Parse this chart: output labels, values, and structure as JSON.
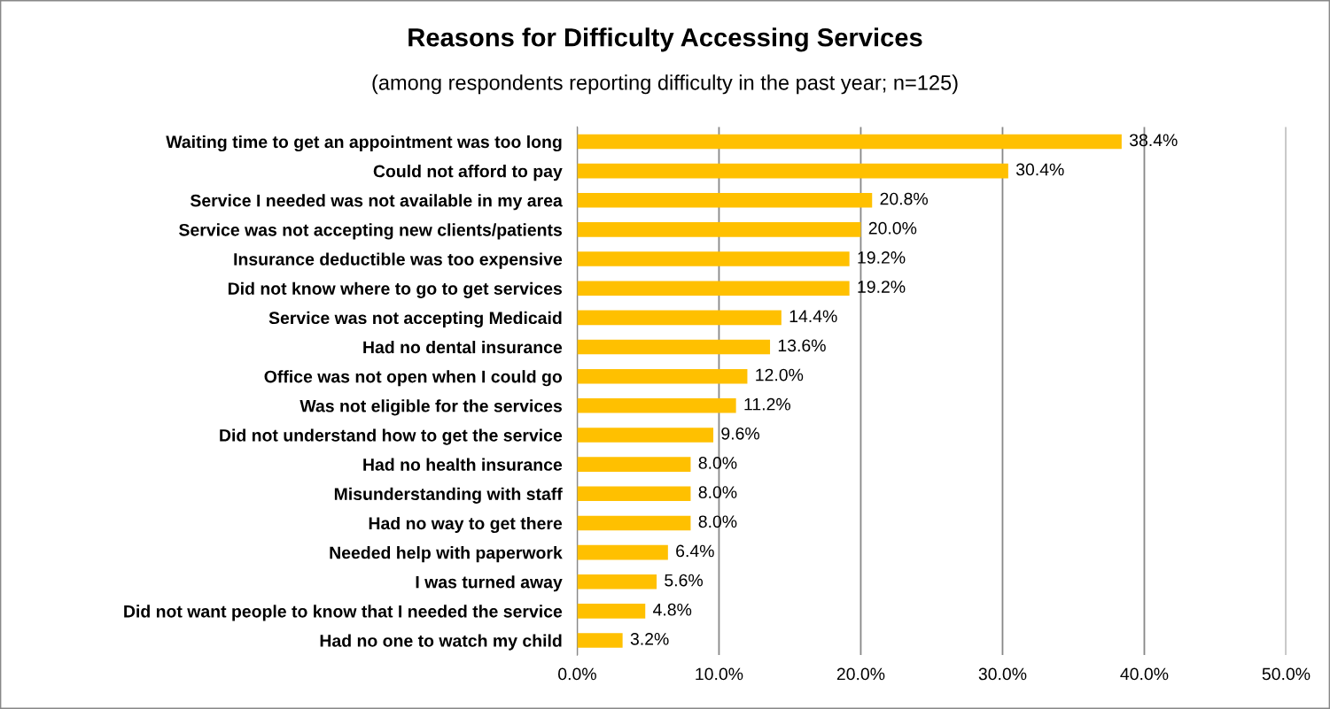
{
  "chart_data": {
    "type": "bar",
    "orientation": "horizontal",
    "title": "Reasons for Difficulty Accessing Services",
    "subtitle": "(among respondents reporting difficulty in the past year; n=125)",
    "categories": [
      "Waiting time to get an appointment was too long",
      "Could not afford to pay",
      "Service I needed was not available in my area",
      "Service was not accepting new clients/patients",
      "Insurance deductible was too expensive",
      "Did not know where to go to get services",
      "Service was not accepting Medicaid",
      "Had no dental insurance",
      "Office was not open when I could go",
      "Was not eligible for the services",
      "Did not understand how to get the service",
      "Had no health insurance",
      "Misunderstanding with staff",
      "Had no way to get there",
      "Needed help with paperwork",
      "I was turned away",
      "Did not want people to know that I needed the service",
      "Had no one to watch my child"
    ],
    "values": [
      38.4,
      30.4,
      20.8,
      20.0,
      19.2,
      19.2,
      14.4,
      13.6,
      12.0,
      11.2,
      9.6,
      8.0,
      8.0,
      8.0,
      6.4,
      5.6,
      4.8,
      3.2
    ],
    "value_labels": [
      "38.4%",
      "30.4%",
      "20.8%",
      "20.0%",
      "19.2%",
      "19.2%",
      "14.4%",
      "13.6%",
      "12.0%",
      "11.2%",
      "9.6%",
      "8.0%",
      "8.0%",
      "8.0%",
      "6.4%",
      "5.6%",
      "4.8%",
      "3.2%"
    ],
    "color": "#ffc000",
    "xlim": [
      0,
      50
    ],
    "xticks": [
      {
        "value": 0,
        "label": "0.0%"
      },
      {
        "value": 10,
        "label": "10.0%"
      },
      {
        "value": 20,
        "label": "20.0%"
      },
      {
        "value": 30,
        "label": "30.0%"
      },
      {
        "value": 40,
        "label": "40.0%"
      },
      {
        "value": 50,
        "label": "50.0%"
      }
    ],
    "grid": "x",
    "legend": false
  }
}
